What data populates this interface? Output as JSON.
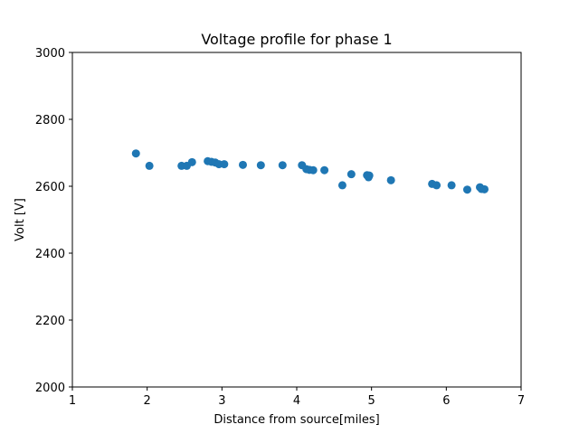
{
  "chart_data": {
    "type": "scatter",
    "title": "Voltage profile for phase 1",
    "xlabel": "Distance from source[miles]",
    "ylabel": "Volt [V]",
    "xlim": [
      1,
      7
    ],
    "ylim": [
      2000,
      3000
    ],
    "xticks": [
      1,
      2,
      3,
      4,
      5,
      6,
      7
    ],
    "yticks": [
      2000,
      2200,
      2400,
      2600,
      2800,
      3000
    ],
    "grid": false,
    "marker_color": "#1f77b4",
    "series": [
      {
        "points": [
          [
            1.85,
            2698
          ],
          [
            2.03,
            2661
          ],
          [
            2.46,
            2661
          ],
          [
            2.53,
            2661
          ],
          [
            2.6,
            2672
          ],
          [
            2.81,
            2675
          ],
          [
            2.86,
            2673
          ],
          [
            2.91,
            2671
          ],
          [
            2.96,
            2666
          ],
          [
            3.03,
            2666
          ],
          [
            3.28,
            2664
          ],
          [
            3.52,
            2663
          ],
          [
            3.81,
            2663
          ],
          [
            4.07,
            2663
          ],
          [
            4.13,
            2651
          ],
          [
            4.17,
            2649
          ],
          [
            4.22,
            2648
          ],
          [
            4.37,
            2648
          ],
          [
            4.61,
            2603
          ],
          [
            4.73,
            2636
          ],
          [
            4.94,
            2633
          ],
          [
            4.96,
            2627
          ],
          [
            4.97,
            2632
          ],
          [
            5.26,
            2618
          ],
          [
            5.81,
            2607
          ],
          [
            5.87,
            2603
          ],
          [
            6.07,
            2603
          ],
          [
            6.28,
            2590
          ],
          [
            6.45,
            2597
          ],
          [
            6.47,
            2592
          ],
          [
            6.51,
            2591
          ]
        ]
      }
    ]
  }
}
